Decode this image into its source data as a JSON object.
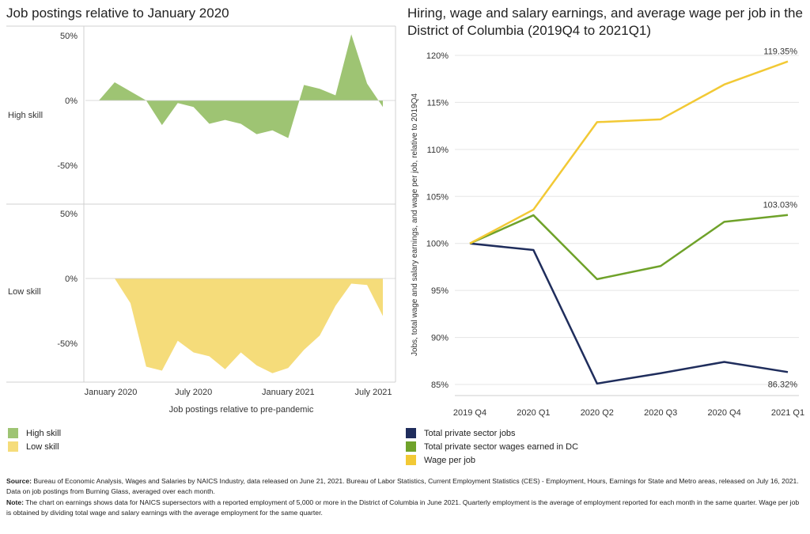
{
  "left_title": "Job postings relative to January 2020",
  "right_title": "Hiring, wage and salary earnings, and average wage per job in the District of Columbia (2019Q4 to 2021Q1)",
  "chart_data": [
    {
      "type": "area",
      "panels": [
        "High skill",
        "Low skill"
      ],
      "x": [
        "2020-01",
        "2020-02",
        "2020-03",
        "2020-04",
        "2020-05",
        "2020-06",
        "2020-07",
        "2020-08",
        "2020-09",
        "2020-10",
        "2020-11",
        "2020-12",
        "2021-01",
        "2021-02",
        "2021-03",
        "2021-04",
        "2021-05",
        "2021-06",
        "2021-07"
      ],
      "x_ticks": [
        "January 2020",
        "July 2020",
        "January 2021",
        "July 2021"
      ],
      "xlabel": "Job postings relative to pre-pandemic",
      "y_ticks": [
        "50%",
        "0%",
        "-50%"
      ],
      "ylim": [
        -80,
        55
      ],
      "series": [
        {
          "name": "High skill",
          "color": "#9ec473",
          "values": [
            0,
            14,
            7,
            0,
            -19,
            -2,
            -5,
            -18,
            -15,
            -18,
            -26,
            -23,
            -29,
            12,
            9,
            4,
            51,
            13,
            -5
          ]
        },
        {
          "name": "Low skill",
          "color": "#f5dc7a",
          "values": [
            0,
            0,
            -19,
            -68,
            -71,
            -48,
            -57,
            -60,
            -70,
            -57,
            -67,
            -73,
            -69,
            -55,
            -44,
            -21,
            -4,
            -5,
            -29
          ]
        }
      ]
    },
    {
      "type": "line",
      "categories": [
        "2019 Q4",
        "2020 Q1",
        "2020 Q2",
        "2020 Q3",
        "2020 Q4",
        "2021 Q1"
      ],
      "ylabel": "Jobs, total wage and salary earnings, and wage per job, relative to 2019Q4",
      "y_ticks": [
        "120%",
        "115%",
        "110%",
        "105%",
        "100%",
        "95%",
        "90%",
        "85%"
      ],
      "ylim": [
        85,
        120
      ],
      "series": [
        {
          "name": "Total private sector jobs",
          "color": "#1f2d5c",
          "values": [
            100,
            99.3,
            85.1,
            86.2,
            87.4,
            86.32
          ],
          "end_label": "86.32%"
        },
        {
          "name": "Total private sector wages earned in DC",
          "color": "#6fa22a",
          "values": [
            100,
            103,
            96.2,
            97.6,
            102.3,
            103.03
          ],
          "end_label": "103.03%"
        },
        {
          "name": "Wage per job",
          "color": "#f2c935",
          "values": [
            100,
            103.6,
            112.9,
            113.2,
            116.9,
            119.35
          ],
          "end_label": "119.35%"
        }
      ]
    }
  ],
  "footnote": {
    "source_label": "Source:",
    "source_text": " Bureau of Economic Analysis, Wages and Salaries by NAICS Industry, data released on June 21, 2021. Bureau of Labor Statistics, Current Employment Statistics (CES) - Employment, Hours, Earnings for State and Metro areas, released on July 16, 2021. Data on job postings from Burning Glass, averaged over each month.",
    "note_label": "Note:",
    "note_text": " The chart on earnings shows data for NAICS supersectors with a reported employment of 5,000 or more in the District of Columbia in June 2021. Quarterly employment is the average of employment reported for each month in the same quarter. Wage per job is obtained by dividing total wage and salary earnings with the average employment for the same quarter."
  }
}
